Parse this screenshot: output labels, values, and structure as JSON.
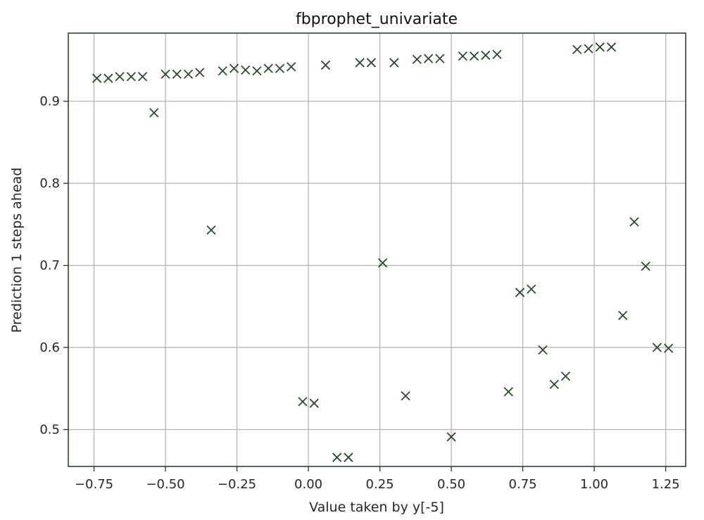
{
  "chart_data": {
    "type": "scatter",
    "title": "fbprophet_univariate",
    "xlabel": "Value taken by y[-5]",
    "ylabel": "Prediction 1 steps ahead",
    "xlim": [
      -0.84,
      1.32
    ],
    "ylim": [
      0.455,
      0.983
    ],
    "xticks": [
      -0.75,
      -0.5,
      -0.25,
      0.0,
      0.25,
      0.5,
      0.75,
      1.0,
      1.25
    ],
    "xtick_labels": [
      "−0.75",
      "−0.50",
      "−0.25",
      "0.00",
      "0.25",
      "0.50",
      "0.75",
      "1.00",
      "1.25"
    ],
    "yticks": [
      0.5,
      0.6,
      0.7,
      0.8,
      0.9
    ],
    "ytick_labels": [
      "0.5",
      "0.6",
      "0.7",
      "0.8",
      "0.9"
    ],
    "grid": true,
    "marker": "x",
    "marker_color": "#2d4a2d",
    "frame_color": "#1e3a1e",
    "points": [
      {
        "x": -0.74,
        "y": 0.928
      },
      {
        "x": -0.7,
        "y": 0.928
      },
      {
        "x": -0.66,
        "y": 0.93
      },
      {
        "x": -0.62,
        "y": 0.93
      },
      {
        "x": -0.58,
        "y": 0.93
      },
      {
        "x": -0.5,
        "y": 0.933
      },
      {
        "x": -0.46,
        "y": 0.933
      },
      {
        "x": -0.42,
        "y": 0.933
      },
      {
        "x": -0.38,
        "y": 0.935
      },
      {
        "x": -0.3,
        "y": 0.937
      },
      {
        "x": -0.26,
        "y": 0.94
      },
      {
        "x": -0.22,
        "y": 0.938
      },
      {
        "x": -0.18,
        "y": 0.937
      },
      {
        "x": -0.14,
        "y": 0.94
      },
      {
        "x": -0.1,
        "y": 0.94
      },
      {
        "x": -0.06,
        "y": 0.942
      },
      {
        "x": 0.06,
        "y": 0.944
      },
      {
        "x": 0.18,
        "y": 0.947
      },
      {
        "x": 0.22,
        "y": 0.947
      },
      {
        "x": 0.3,
        "y": 0.947
      },
      {
        "x": 0.38,
        "y": 0.951
      },
      {
        "x": 0.42,
        "y": 0.952
      },
      {
        "x": 0.46,
        "y": 0.952
      },
      {
        "x": 0.54,
        "y": 0.955
      },
      {
        "x": 0.58,
        "y": 0.955
      },
      {
        "x": 0.62,
        "y": 0.956
      },
      {
        "x": 0.66,
        "y": 0.957
      },
      {
        "x": 0.94,
        "y": 0.963
      },
      {
        "x": 0.98,
        "y": 0.964
      },
      {
        "x": 1.02,
        "y": 0.966
      },
      {
        "x": 1.06,
        "y": 0.966
      },
      {
        "x": -0.54,
        "y": 0.886
      },
      {
        "x": -0.34,
        "y": 0.743
      },
      {
        "x": 0.26,
        "y": 0.703
      },
      {
        "x": 1.14,
        "y": 0.753
      },
      {
        "x": 1.18,
        "y": 0.699
      },
      {
        "x": 0.74,
        "y": 0.667
      },
      {
        "x": 0.78,
        "y": 0.671
      },
      {
        "x": 1.1,
        "y": 0.639
      },
      {
        "x": 0.82,
        "y": 0.597
      },
      {
        "x": 1.22,
        "y": 0.6
      },
      {
        "x": 1.26,
        "y": 0.599
      },
      {
        "x": 0.9,
        "y": 0.565
      },
      {
        "x": 0.86,
        "y": 0.555
      },
      {
        "x": 0.7,
        "y": 0.546
      },
      {
        "x": 0.34,
        "y": 0.541
      },
      {
        "x": -0.02,
        "y": 0.534
      },
      {
        "x": 0.02,
        "y": 0.532
      },
      {
        "x": 0.5,
        "y": 0.491
      },
      {
        "x": 0.1,
        "y": 0.466
      },
      {
        "x": 0.14,
        "y": 0.466
      }
    ]
  }
}
